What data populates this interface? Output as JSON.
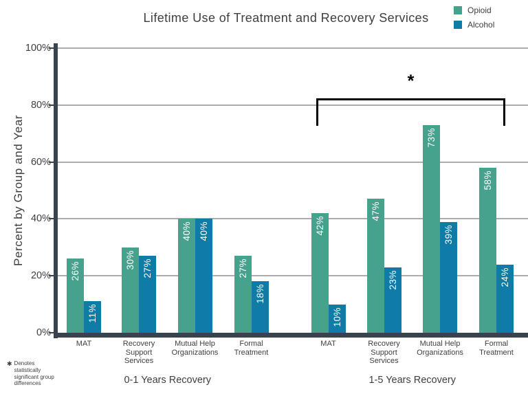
{
  "chart_data": {
    "type": "bar",
    "title": "Lifetime Use of Treatment and Recovery Services",
    "ylabel": "Percent by Group and Year",
    "ylim": [
      0,
      100
    ],
    "yticks": [
      "0%",
      "20%",
      "40%",
      "60%",
      "80%",
      "100%"
    ],
    "grid": "horizontal",
    "legend_position": "top-right",
    "legend": [
      {
        "name": "Opioid",
        "color": "#46A28D"
      },
      {
        "name": "Alcohol",
        "color": "#0E7CA6"
      }
    ],
    "groups": [
      {
        "label": "0-1 Years Recovery",
        "categories": [
          {
            "name": "MAT",
            "lines": [
              "MAT"
            ]
          },
          {
            "name": "Recovery Support Services",
            "lines": [
              "Recovery",
              "Support",
              "Services"
            ]
          },
          {
            "name": "Mutual Help Organizations",
            "lines": [
              "Mutual Help",
              "Organizations"
            ]
          },
          {
            "name": "Formal Treatment",
            "lines": [
              "Formal",
              "Treatment"
            ]
          }
        ],
        "series": [
          {
            "name": "Opioid",
            "values": [
              26,
              30,
              40,
              27
            ]
          },
          {
            "name": "Alcohol",
            "values": [
              11,
              27,
              40,
              18
            ]
          }
        ]
      },
      {
        "label": "1-5 Years Recovery",
        "significance_marker": "*",
        "categories": [
          {
            "name": "MAT",
            "lines": [
              "MAT"
            ]
          },
          {
            "name": "Recovery Support Services",
            "lines": [
              "Recovery",
              "Support",
              "Services"
            ]
          },
          {
            "name": "Mutual Help Organizations",
            "lines": [
              "Mutual Help",
              "Organizations"
            ]
          },
          {
            "name": "Formal Treatment",
            "lines": [
              "Formal",
              "Treatment"
            ]
          }
        ],
        "series": [
          {
            "name": "Opioid",
            "values": [
              42,
              47,
              73,
              58
            ]
          },
          {
            "name": "Alcohol",
            "values": [
              10,
              23,
              39,
              24
            ]
          }
        ]
      }
    ],
    "annotation": {
      "symbol": "*",
      "applies_to": "1-5 Years Recovery"
    }
  },
  "footnote": {
    "symbol": "✱",
    "lines": [
      "Denotes",
      "statistically",
      "significant group",
      "differences"
    ]
  },
  "colors": {
    "opioid": "#46A28D",
    "alcohol": "#0E7CA6",
    "axis": "#39434D",
    "gridline": "#ACACAC",
    "text": "#3E3E3E",
    "bar_label": "#FFFFFF",
    "bracket": "#000000"
  }
}
